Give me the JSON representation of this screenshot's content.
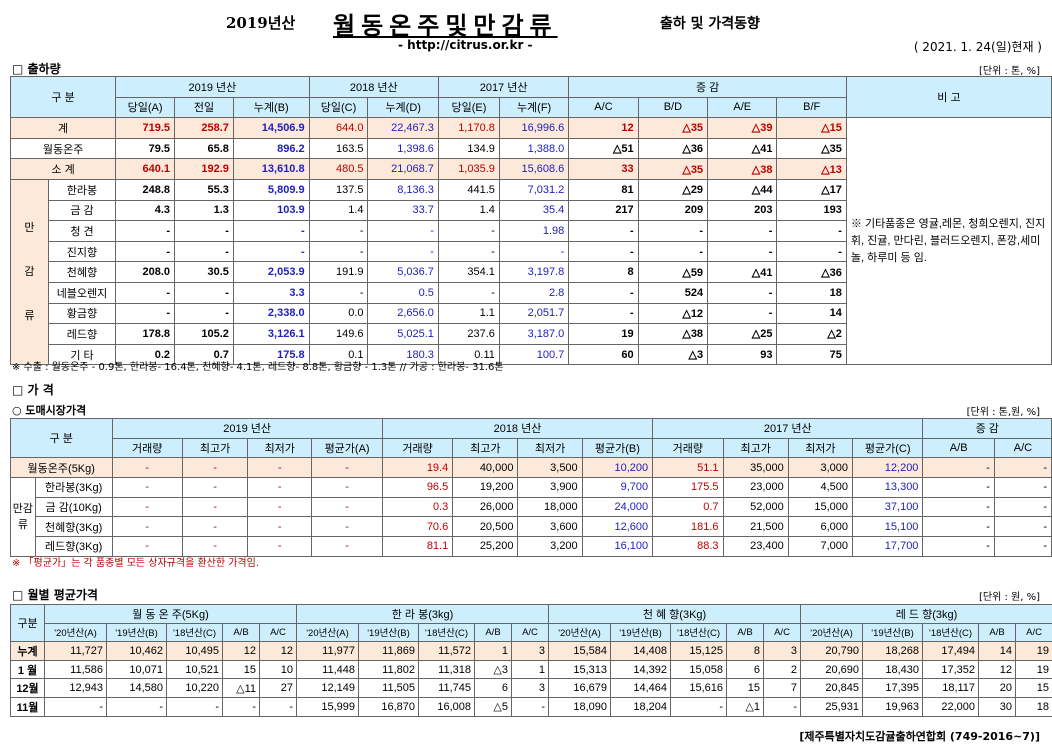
{
  "header": {
    "year": "2019년산",
    "title": "월동온주및만감류",
    "subtitle": "출하 및 가격동향",
    "url": "- http://citrus.or.kr -",
    "date": "( 2021. 1. 24(일)현재 )"
  },
  "s1": {
    "title": "□ 출하량",
    "unit": "[단위 : 톤, %]",
    "h1": [
      "구 분",
      "2019 년산",
      "2018 년산",
      "2017 년산",
      "증 감",
      "비 고"
    ],
    "h2": [
      "당일(A)",
      "전일",
      "누계(B)",
      "당일(C)",
      "누계(D)",
      "당일(E)",
      "누계(F)",
      "A/C",
      "B/D",
      "A/E",
      "B/F"
    ],
    "rows": [
      {
        "side": "",
        "name": "계",
        "v": [
          "719.5",
          "258.7",
          "14,506.9",
          "644.0",
          "22,467.3",
          "1,170.8",
          "16,996.6",
          "12",
          "△35",
          "△39",
          "△15"
        ]
      },
      {
        "side": "",
        "name": "월동온주",
        "v": [
          "79.5",
          "65.8",
          "896.2",
          "163.5",
          "1,398.6",
          "134.9",
          "1,388.0",
          "△51",
          "△36",
          "△41",
          "△35"
        ]
      },
      {
        "side": "",
        "name": "소 계",
        "v": [
          "640.1",
          "192.9",
          "13,610.8",
          "480.5",
          "21,068.7",
          "1,035.9",
          "15,608.6",
          "33",
          "△35",
          "△38",
          "△13"
        ]
      },
      {
        "side": "만",
        "name": "한라봉",
        "v": [
          "248.8",
          "55.3",
          "5,809.9",
          "137.5",
          "8,136.3",
          "441.5",
          "7,031.2",
          "81",
          "△29",
          "△44",
          "△17"
        ]
      },
      {
        "side": "",
        "name": "금 감",
        "v": [
          "4.3",
          "1.3",
          "103.9",
          "1.4",
          "33.7",
          "1.4",
          "35.4",
          "217",
          "209",
          "203",
          "193"
        ]
      },
      {
        "side": "",
        "name": "청 견",
        "v": [
          "-",
          "-",
          "-",
          "-",
          "-",
          "-",
          "1.98",
          "-",
          "-",
          "-",
          "-"
        ]
      },
      {
        "side": "",
        "name": "진지향",
        "v": [
          "-",
          "-",
          "-",
          "-",
          "-",
          "-",
          "-",
          "-",
          "-",
          "-",
          "-"
        ]
      },
      {
        "side": "감",
        "name": "천혜향",
        "v": [
          "208.0",
          "30.5",
          "2,053.9",
          "191.9",
          "5,036.7",
          "354.1",
          "3,197.8",
          "8",
          "△59",
          "△41",
          "△36"
        ]
      },
      {
        "side": "",
        "name": "네블오렌지",
        "v": [
          "-",
          "-",
          "3.3",
          "-",
          "0.5",
          "-",
          "2.8",
          "-",
          "524",
          "-",
          "18"
        ]
      },
      {
        "side": "",
        "name": "황금향",
        "v": [
          "-",
          "-",
          "2,338.0",
          "0.0",
          "2,656.0",
          "1.1",
          "2,051.7",
          "-",
          "△12",
          "-",
          "14"
        ]
      },
      {
        "side": "류",
        "name": "레드향",
        "v": [
          "178.8",
          "105.2",
          "3,126.1",
          "149.6",
          "5,025.1",
          "237.6",
          "3,187.0",
          "19",
          "△38",
          "△25",
          "△2"
        ]
      },
      {
        "side": "",
        "name": "기 타",
        "v": [
          "0.2",
          "0.7",
          "175.8",
          "0.1",
          "180.3",
          "0.11",
          "100.7",
          "60",
          "△3",
          "93",
          "75"
        ]
      }
    ],
    "remark": "※ 기타품종은 영귤,레몬, 청희오렌지, 진지휘, 진귤, 만다린, 블러드오렌지, 폰깡,세미놀, 하루미 등 임.",
    "note": "※ 수출 : 월동온주 - 0.9톤, 한라봉- 16.4톤, 천혜향- 4.1톤, 레드향- 8.8톤, 황금향 - 1.3톤 // 가공 : 한라봉- 31.6톤"
  },
  "s2": {
    "title": "□ 가 격",
    "sub": "○ 도매시장가격",
    "unit": "[단위 : 톤,원, %]",
    "h1": [
      "구 분",
      "2019 년산",
      "2018 년산",
      "2017 년산",
      "증 감"
    ],
    "h2": [
      "거래량",
      "최고가",
      "최저가",
      "평균가(A)",
      "거래량",
      "최고가",
      "최저가",
      "평균가(B)",
      "거래량",
      "최고가",
      "최저가",
      "평균가(C)",
      "A/B",
      "A/C"
    ],
    "side": "만감류",
    "rows": [
      {
        "name": "월동온주(5Kg)",
        "v": [
          "-",
          "-",
          "-",
          "-",
          "19.4",
          "40,000",
          "3,500",
          "10,200",
          "51.1",
          "35,000",
          "3,000",
          "12,200",
          "-",
          "-"
        ]
      },
      {
        "name": "한라봉(3Kg)",
        "v": [
          "-",
          "-",
          "-",
          "-",
          "96.5",
          "19,200",
          "3,900",
          "9,700",
          "175.5",
          "23,000",
          "4,500",
          "13,300",
          "-",
          "-"
        ]
      },
      {
        "name": "금 감(10Kg)",
        "v": [
          "-",
          "-",
          "-",
          "-",
          "0.3",
          "26,000",
          "18,000",
          "24,000",
          "0.7",
          "52,000",
          "15,000",
          "37,100",
          "-",
          "-"
        ]
      },
      {
        "name": "천혜향(3Kg)",
        "v": [
          "-",
          "-",
          "-",
          "-",
          "70.6",
          "20,500",
          "3,600",
          "12,600",
          "181.6",
          "21,500",
          "6,000",
          "15,100",
          "-",
          "-"
        ]
      },
      {
        "name": "레드향(3Kg)",
        "v": [
          "-",
          "-",
          "-",
          "-",
          "81.1",
          "25,200",
          "3,200",
          "16,100",
          "88.3",
          "23,400",
          "7,000",
          "17,700",
          "-",
          "-"
        ]
      }
    ],
    "note": "※ 「평균가」는 각 품종별 모든 상자규격을 환산한 가격임."
  },
  "s3": {
    "title": "□ 월별 평균가격",
    "unit": "[단위 : 원, %]",
    "h1": [
      "구분",
      "월 동 온 주(5Kg)",
      "한 라 봉(3kg)",
      "천 혜 향(3Kg)",
      "레 드 향(3kg)"
    ],
    "h2": [
      "'20년산(A)",
      "'19년산(B)",
      "'18년산(C)",
      "A/B",
      "A/C"
    ],
    "rows": [
      {
        "name": "누계",
        "v": [
          "11,727",
          "10,462",
          "10,495",
          "12",
          "12",
          "11,977",
          "11,869",
          "11,572",
          "1",
          "3",
          "15,584",
          "14,408",
          "15,125",
          "8",
          "3",
          "20,790",
          "18,268",
          "17,494",
          "14",
          "19"
        ]
      },
      {
        "name": "1 월",
        "v": [
          "11,586",
          "10,071",
          "10,521",
          "15",
          "10",
          "11,448",
          "11,802",
          "11,318",
          "△3",
          "1",
          "15,313",
          "14,392",
          "15,058",
          "6",
          "2",
          "20,690",
          "18,430",
          "17,352",
          "12",
          "19"
        ]
      },
      {
        "name": "12월",
        "v": [
          "12,943",
          "14,580",
          "10,220",
          "△11",
          "27",
          "12,149",
          "11,505",
          "11,745",
          "6",
          "3",
          "16,679",
          "14,464",
          "15,616",
          "15",
          "7",
          "20,845",
          "17,395",
          "18,117",
          "20",
          "15"
        ]
      },
      {
        "name": "11월",
        "v": [
          "-",
          "-",
          "-",
          "-",
          "-",
          "15,999",
          "16,870",
          "16,008",
          "△5",
          "-",
          "18,090",
          "18,204",
          "-",
          "△1",
          "-",
          "25,931",
          "19,963",
          "22,000",
          "30",
          "18"
        ]
      }
    ]
  },
  "footer": "[제주특별자치도감귤출하연합회 (749-2016~7)]"
}
